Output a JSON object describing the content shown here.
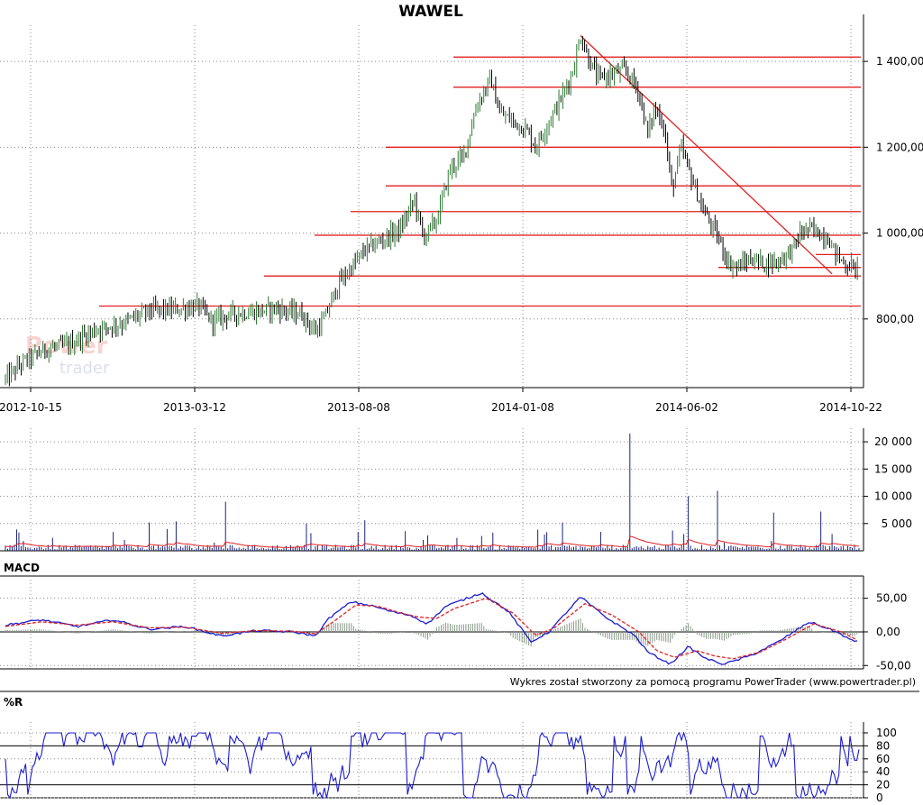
{
  "chart_data": [
    {
      "type": "candlestick",
      "title": "WAWEL",
      "xlabels": [
        "2012-10-15",
        "2013-03-12",
        "2013-08-08",
        "2014-01-08",
        "2014-06-02",
        "2014-10-22"
      ],
      "yticks": [
        800,
        1000,
        1200,
        1400
      ],
      "ytick_labels": [
        "800,00",
        "1 000,00",
        "1 200,00",
        "1 400,00"
      ],
      "ylim": [
        640,
        1480
      ],
      "grid": true,
      "price_path": [
        [
          0,
          660
        ],
        [
          20,
          700
        ],
        [
          45,
          730
        ],
        [
          70,
          740
        ],
        [
          100,
          775
        ],
        [
          130,
          790
        ],
        [
          160,
          820
        ],
        [
          190,
          822
        ],
        [
          215,
          830
        ],
        [
          230,
          795
        ],
        [
          250,
          812
        ],
        [
          275,
          815
        ],
        [
          300,
          825
        ],
        [
          330,
          810
        ],
        [
          345,
          770
        ],
        [
          355,
          800
        ],
        [
          370,
          880
        ],
        [
          385,
          920
        ],
        [
          400,
          960
        ],
        [
          420,
          985
        ],
        [
          440,
          1010
        ],
        [
          455,
          1080
        ],
        [
          465,
          990
        ],
        [
          480,
          1030
        ],
        [
          495,
          1150
        ],
        [
          510,
          1180
        ],
        [
          525,
          1300
        ],
        [
          540,
          1360
        ],
        [
          550,
          1280
        ],
        [
          565,
          1260
        ],
        [
          580,
          1240
        ],
        [
          590,
          1200
        ],
        [
          605,
          1260
        ],
        [
          620,
          1320
        ],
        [
          632,
          1380
        ],
        [
          640,
          1460
        ],
        [
          650,
          1400
        ],
        [
          660,
          1360
        ],
        [
          675,
          1370
        ],
        [
          690,
          1380
        ],
        [
          705,
          1330
        ],
        [
          715,
          1230
        ],
        [
          722,
          1290
        ],
        [
          732,
          1260
        ],
        [
          742,
          1100
        ],
        [
          752,
          1200
        ],
        [
          765,
          1120
        ],
        [
          775,
          1060
        ],
        [
          785,
          1020
        ],
        [
          795,
          980
        ],
        [
          805,
          930
        ],
        [
          815,
          920
        ],
        [
          830,
          940
        ],
        [
          845,
          930
        ],
        [
          860,
          935
        ],
        [
          875,
          960
        ],
        [
          885,
          1000
        ],
        [
          895,
          1010
        ],
        [
          905,
          1000
        ],
        [
          915,
          990
        ],
        [
          925,
          950
        ],
        [
          935,
          925
        ],
        [
          950,
          920
        ]
      ],
      "support_resistance_levels": [
        {
          "y": 1410,
          "x_from": "2013-12",
          "x_to": "2014-10-22"
        },
        {
          "y": 1340,
          "x_from": "2013-12",
          "x_to": "2014-10-22"
        },
        {
          "y": 1200,
          "x_from": "2013-09",
          "x_to": "2014-10-22"
        },
        {
          "y": 1110,
          "x_from": "2013-09",
          "x_to": "2014-10-22"
        },
        {
          "y": 1050,
          "x_from": "2013-08",
          "x_to": "2014-10-22"
        },
        {
          "y": 995,
          "x_from": "2013-07",
          "x_to": "2014-10-22"
        },
        {
          "y": 900,
          "x_from": "2013-06",
          "x_to": "2014-10-22"
        },
        {
          "y": 830,
          "x_from": "2013-01",
          "x_to": "2014-10-22"
        },
        {
          "y": 950,
          "x_from": "2014-09",
          "x_to": "2014-10-22"
        },
        {
          "y": 920,
          "x_from": "2014-07",
          "x_to": "2014-10-22"
        }
      ],
      "trendline": {
        "from": [
          640,
          1460
        ],
        "to": [
          920,
          905
        ]
      }
    },
    {
      "type": "bar",
      "series_name": "volume",
      "yticks": [
        5000,
        10000,
        15000,
        20000
      ],
      "ytick_labels": [
        "5 000",
        "10 000",
        "15 000",
        "20 000"
      ],
      "ylim": [
        0,
        22500
      ],
      "spikes": [
        [
          160,
          5200
        ],
        [
          190,
          5400
        ],
        [
          245,
          9000
        ],
        [
          335,
          5000
        ],
        [
          400,
          5600
        ],
        [
          620,
          5200
        ],
        [
          695,
          21500
        ],
        [
          760,
          10000
        ],
        [
          793,
          11000
        ],
        [
          855,
          7000
        ],
        [
          908,
          7200
        ]
      ]
    },
    {
      "type": "line",
      "title": "MACD",
      "yticks": [
        -50,
        0,
        50
      ],
      "ytick_labels": [
        "-50,00",
        "0,00",
        "50,00"
      ],
      "ylim": [
        -55,
        75
      ],
      "series": [
        {
          "values": [
            [
              0,
              10
            ],
            [
              40,
              18
            ],
            [
              80,
              8
            ],
            [
              120,
              18
            ],
            [
              160,
              4
            ],
            [
              200,
              8
            ],
            [
              240,
              -6
            ],
            [
              280,
              2
            ],
            [
              320,
              0
            ],
            [
              345,
              -6
            ],
            [
              360,
              20
            ],
            [
              385,
              45
            ],
            [
              410,
              38
            ],
            [
              430,
              30
            ],
            [
              450,
              25
            ],
            [
              470,
              12
            ],
            [
              490,
              38
            ],
            [
              530,
              58
            ],
            [
              560,
              30
            ],
            [
              585,
              -15
            ],
            [
              605,
              0
            ],
            [
              640,
              52
            ],
            [
              670,
              20
            ],
            [
              700,
              -5
            ],
            [
              715,
              -30
            ],
            [
              740,
              -48
            ],
            [
              760,
              -22
            ],
            [
              780,
              -40
            ],
            [
              800,
              -48
            ],
            [
              830,
              -35
            ],
            [
              860,
              -15
            ],
            [
              895,
              15
            ],
            [
              925,
              0
            ],
            [
              945,
              -15
            ],
            [
              950,
              -12
            ]
          ]
        },
        {
          "values": [
            [
              0,
              8
            ],
            [
              40,
              15
            ],
            [
              80,
              10
            ],
            [
              120,
              15
            ],
            [
              160,
              6
            ],
            [
              200,
              7
            ],
            [
              240,
              -2
            ],
            [
              280,
              2
            ],
            [
              320,
              1
            ],
            [
              345,
              -3
            ],
            [
              365,
              15
            ],
            [
              390,
              40
            ],
            [
              415,
              38
            ],
            [
              440,
              28
            ],
            [
              460,
              22
            ],
            [
              480,
              20
            ],
            [
              500,
              35
            ],
            [
              535,
              50
            ],
            [
              565,
              28
            ],
            [
              590,
              -5
            ],
            [
              610,
              5
            ],
            [
              645,
              42
            ],
            [
              675,
              25
            ],
            [
              705,
              0
            ],
            [
              725,
              -28
            ],
            [
              745,
              -38
            ],
            [
              770,
              -28
            ],
            [
              790,
              -36
            ],
            [
              810,
              -40
            ],
            [
              840,
              -30
            ],
            [
              870,
              -10
            ],
            [
              900,
              12
            ],
            [
              930,
              0
            ],
            [
              945,
              -10
            ],
            [
              950,
              -12
            ]
          ]
        }
      ]
    },
    {
      "type": "line",
      "title": "%R",
      "yticks": [
        0,
        20,
        40,
        60,
        80,
        100
      ],
      "ytick_labels": [
        "0",
        "20",
        "40",
        "60",
        "80",
        "100"
      ],
      "ylim": [
        0,
        100
      ],
      "reference_lines": [
        20,
        80
      ]
    }
  ],
  "credit": "Wykres został stworzony za pomocą programu PowerTrader (www.powertrader.pl)",
  "watermark": {
    "line1": "Power",
    "line2": "trader"
  },
  "colors": {
    "price": "#000000",
    "up_price": "#2e7d32",
    "levels": "#e02020",
    "volume": "#1a237e",
    "macd": "#1c1cd0",
    "signal": "#e02020",
    "wr": "#1c1cd0"
  }
}
